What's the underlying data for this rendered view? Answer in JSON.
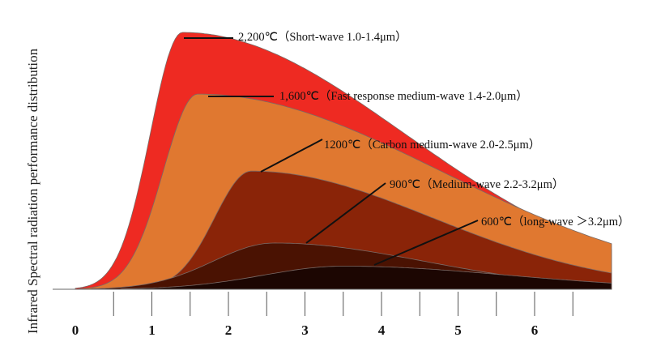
{
  "chart_data": {
    "type": "area",
    "ylabel": "Infrared Spectral radiation performance distribution",
    "xlabel": "",
    "x_ticks": [
      "0",
      "1",
      "2",
      "3",
      "4",
      "5",
      "6"
    ],
    "xlim": [
      0,
      7
    ],
    "series": [
      {
        "name": "2,200℃(Short-wave 1.0-1.4μm)",
        "label": "2,200℃（Short-wave 1.0-1.4μm）",
        "color": "#ee2a22",
        "peak_x": 1.4,
        "peak": 1.0,
        "left_width": 0.42,
        "right_width": 2.15
      },
      {
        "name": "1,600℃(Fast response medium-wave 1.4-2.0μm)",
        "label": "1,600℃（Fast response medium-wave 1.4-2.0μm）",
        "color": "#e07830",
        "peak_x": 1.6,
        "peak": 0.76,
        "left_width": 0.45,
        "right_width": 2.35
      },
      {
        "name": "1200℃(Carbon medium-wave 2.0-2.5μm)",
        "label": "1200℃（Carbon  medium-wave 2.0-2.5μm）",
        "color": "#8a2408",
        "peak_x": 2.3,
        "peak": 0.46,
        "left_width": 0.48,
        "right_width": 1.75
      },
      {
        "name": "900℃(Medium-wave 2.2-3.2μm)",
        "label": "900℃（Medium-wave 2.2-3.2μm）",
        "color": "#4a1202",
        "peak_x": 2.6,
        "peak": 0.18,
        "left_width": 0.8,
        "right_width": 1.45
      },
      {
        "name": "600℃(long-wave >3.2μm)",
        "label": "600℃（long-wave ＞3.2μm）",
        "color": "#1c0602",
        "peak_x": 3.5,
        "peak": 0.09,
        "left_width": 1.05,
        "right_width": 1.6
      }
    ]
  }
}
